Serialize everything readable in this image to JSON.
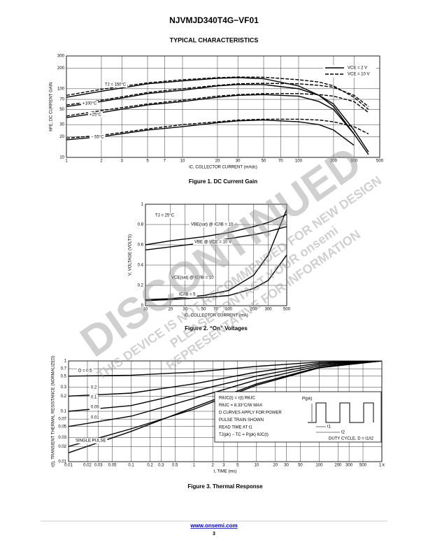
{
  "header": {
    "title": "NJVMJD340T4G−VF01",
    "section": "TYPICAL CHARACTERISTICS"
  },
  "watermark": [
    "DISCONTINUED",
    "THIS DEVICE IS NOT RECOMMENDED FOR NEW DESIGN",
    "PLEASE CONTACT YOUR onsemi",
    "REPRESENTATIVE FOR INFORMATION"
  ],
  "footer": {
    "link": "www.onsemi.com",
    "page": "3"
  },
  "chart_data": [
    {
      "type": "line",
      "title": "Figure 1. DC Current Gain",
      "xlabel": "IC, COLLECTOR CURRENT (mAdc)",
      "ylabel": "hFE, DC CURRENT GAIN",
      "xscale": "log",
      "yscale": "log",
      "grid": true,
      "xlim": [
        1,
        500
      ],
      "ylim": [
        10,
        300
      ],
      "xticks": [
        1,
        2,
        3,
        5,
        7,
        10,
        20,
        30,
        50,
        70,
        100,
        200,
        300,
        500
      ],
      "yticks": [
        10,
        20,
        30,
        50,
        70,
        100,
        200,
        300
      ],
      "legend": [
        {
          "label": "VCE = 2 V",
          "dash": false
        },
        {
          "label": "VCE = 10 V",
          "dash": true
        }
      ],
      "x": [
        1,
        2,
        5,
        10,
        20,
        30,
        50,
        100,
        150,
        200,
        300,
        400
      ],
      "series": [
        {
          "name": "TJ = 150°C",
          "values": [
            75,
            92,
            118,
            130,
            142,
            145,
            140,
            110,
            80,
            55,
            22,
            null
          ],
          "values_dashed": [
            80,
            98,
            122,
            135,
            145,
            148,
            147,
            135,
            125,
            110,
            75,
            50
          ]
        },
        {
          "name": "+100°C",
          "values": [
            55,
            65,
            85,
            95,
            110,
            115,
            115,
            100,
            80,
            60,
            25,
            12
          ],
          "values_dashed": [
            58,
            68,
            88,
            100,
            112,
            118,
            120,
            118,
            112,
            105,
            80,
            55
          ]
        },
        {
          "name": "+25°C",
          "values": [
            38,
            45,
            58,
            65,
            75,
            80,
            82,
            78,
            65,
            50,
            22,
            11
          ],
          "values_dashed": [
            40,
            48,
            60,
            68,
            78,
            82,
            85,
            85,
            82,
            78,
            65,
            45
          ]
        },
        {
          "name": "− 55°C",
          "values": [
            18,
            20,
            25,
            28,
            32,
            34,
            35,
            33,
            30,
            25,
            15,
            null
          ],
          "values_dashed": [
            19,
            21,
            26,
            30,
            33,
            35,
            36,
            36,
            35,
            33,
            28,
            22
          ]
        }
      ]
    },
    {
      "type": "line",
      "title": "Figure 2. “On” Voltages",
      "xlabel": "IC, COLLECTOR CURRENT (mA)",
      "ylabel": "V, VOLTAGE (VOLTS)",
      "xscale": "log",
      "yscale": "linear",
      "grid": true,
      "xlim": [
        10,
        500
      ],
      "ylim": [
        0,
        1
      ],
      "xticks": [
        10,
        20,
        30,
        50,
        70,
        100,
        200,
        300,
        500
      ],
      "yticks": [
        0,
        0.2,
        0.4,
        0.6,
        0.8,
        1
      ],
      "annotation": "TJ = 25°C",
      "x": [
        10,
        20,
        50,
        100,
        200,
        300,
        500
      ],
      "series": [
        {
          "name": "VBE(sat) @ IC/IB = 10",
          "values": [
            0.6,
            0.64,
            0.68,
            0.72,
            0.78,
            0.82,
            0.9
          ]
        },
        {
          "name": "VBE @ VCE = 10 V",
          "values": [
            0.55,
            0.58,
            0.62,
            0.66,
            0.7,
            0.73,
            0.78
          ]
        },
        {
          "name": "VCE(sat) @ IC/IB = 10",
          "values": [
            0.06,
            0.07,
            0.1,
            0.15,
            0.3,
            0.5,
            0.95
          ]
        },
        {
          "name": "IC/IB = 5",
          "values": [
            0.05,
            0.06,
            0.08,
            0.1,
            0.17,
            0.25,
            0.5
          ]
        }
      ]
    },
    {
      "type": "line",
      "title": "Figure 3. Thermal Response",
      "xlabel": "t, TIME (ms)",
      "ylabel": "r(t), TRANSIENT THERMAL RESISTANCE (NORMALIZED)",
      "xscale": "log",
      "yscale": "log",
      "grid": true,
      "xlim": [
        0.01,
        1000
      ],
      "ylim": [
        0.01,
        1
      ],
      "xticks": [
        0.01,
        0.02,
        0.03,
        0.05,
        0.1,
        0.2,
        0.3,
        0.5,
        1,
        2,
        3,
        5,
        10,
        20,
        30,
        50,
        100,
        200,
        300,
        500,
        {
          "value": 1000,
          "label": "1 k"
        }
      ],
      "yticks": [
        0.01,
        0.02,
        0.03,
        0.05,
        0.07,
        0.1,
        0.2,
        0.3,
        0.5,
        0.7,
        1
      ],
      "notes": [
        "RθJC(t) = r(t) RθJC",
        "RθJC = 8.33°C/W MAX",
        "D CURVES APPLY FOR POWER",
        "PULSE TRAIN SHOWN",
        "READ TIME AT t1",
        "TJ(pk) − TC = P(pk) θJC(t)"
      ],
      "pulse_labels": [
        "P(pk)",
        "t1",
        "t2",
        "DUTY CYCLE, D = t1/t2"
      ],
      "x": [
        0.01,
        0.1,
        1,
        10,
        100,
        1000
      ],
      "series": [
        {
          "name": "D = 0.5",
          "values": [
            0.5,
            0.52,
            0.6,
            0.78,
            0.95,
            1
          ]
        },
        {
          "name": "0.2",
          "values": [
            0.2,
            0.23,
            0.35,
            0.6,
            0.9,
            1
          ]
        },
        {
          "name": "0.1",
          "values": [
            0.1,
            0.13,
            0.25,
            0.5,
            0.85,
            1
          ]
        },
        {
          "name": "0.05",
          "values": [
            0.05,
            0.08,
            0.18,
            0.42,
            0.8,
            1
          ]
        },
        {
          "name": "0.01",
          "values": [
            0.015,
            0.04,
            0.12,
            0.35,
            0.75,
            1
          ]
        },
        {
          "name": "SINGLE PULSE",
          "values": [
            0.02,
            0.045,
            0.11,
            0.33,
            0.73,
            1
          ]
        }
      ]
    }
  ]
}
